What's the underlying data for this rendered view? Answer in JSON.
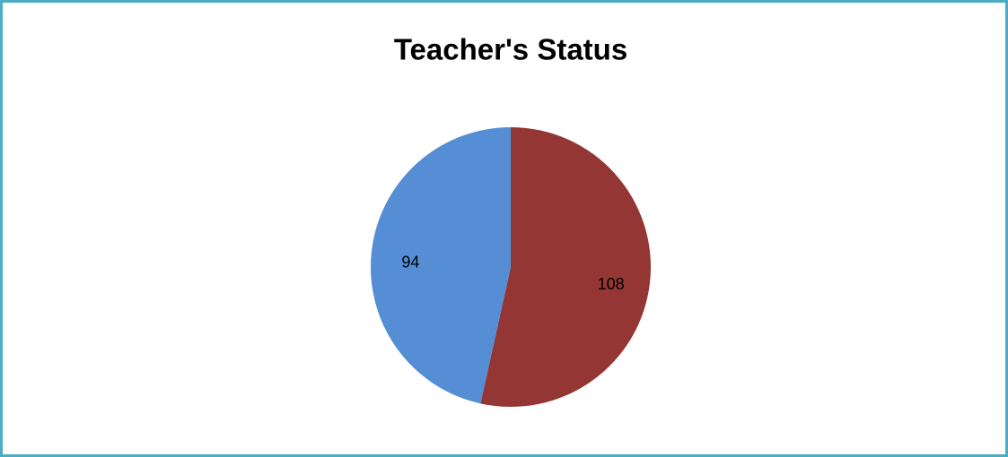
{
  "chart_data": {
    "type": "pie",
    "title": "Teacher's Status",
    "values": [
      108,
      94
    ],
    "colors": [
      "#943634",
      "#558ed5"
    ]
  }
}
